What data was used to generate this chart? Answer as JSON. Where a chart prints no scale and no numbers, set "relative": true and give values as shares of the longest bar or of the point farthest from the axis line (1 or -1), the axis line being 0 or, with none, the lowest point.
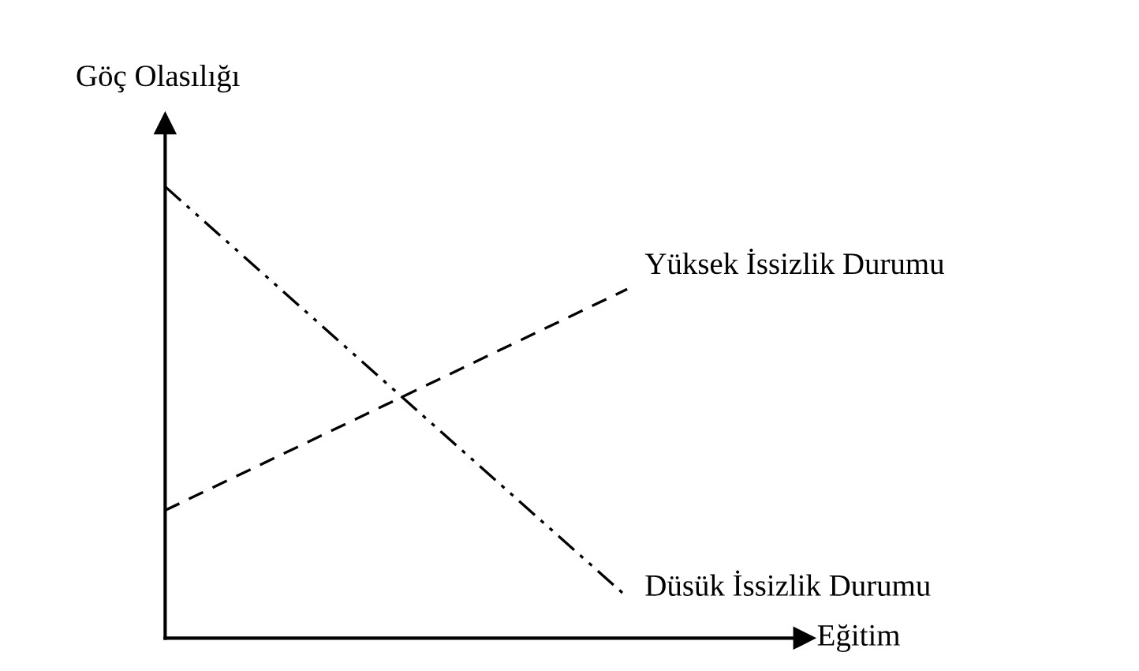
{
  "chart_data": {
    "type": "line",
    "relative": true,
    "xlabel": "Eğitim",
    "ylabel": "Göç Olasılığı",
    "categories": [
      null,
      null
    ],
    "marker": "none",
    "legend": false,
    "series": [
      {
        "name": "Yüksek İssizlik Durumu",
        "color": "#000000",
        "line_style": "dashed",
        "values": [
          0.283,
          0.773
        ]
      },
      {
        "name": "Düsük İssizlik Durumu",
        "color": "#000000",
        "line_style": "dashdot",
        "values": [
          1,
          0.091
        ]
      }
    ]
  }
}
